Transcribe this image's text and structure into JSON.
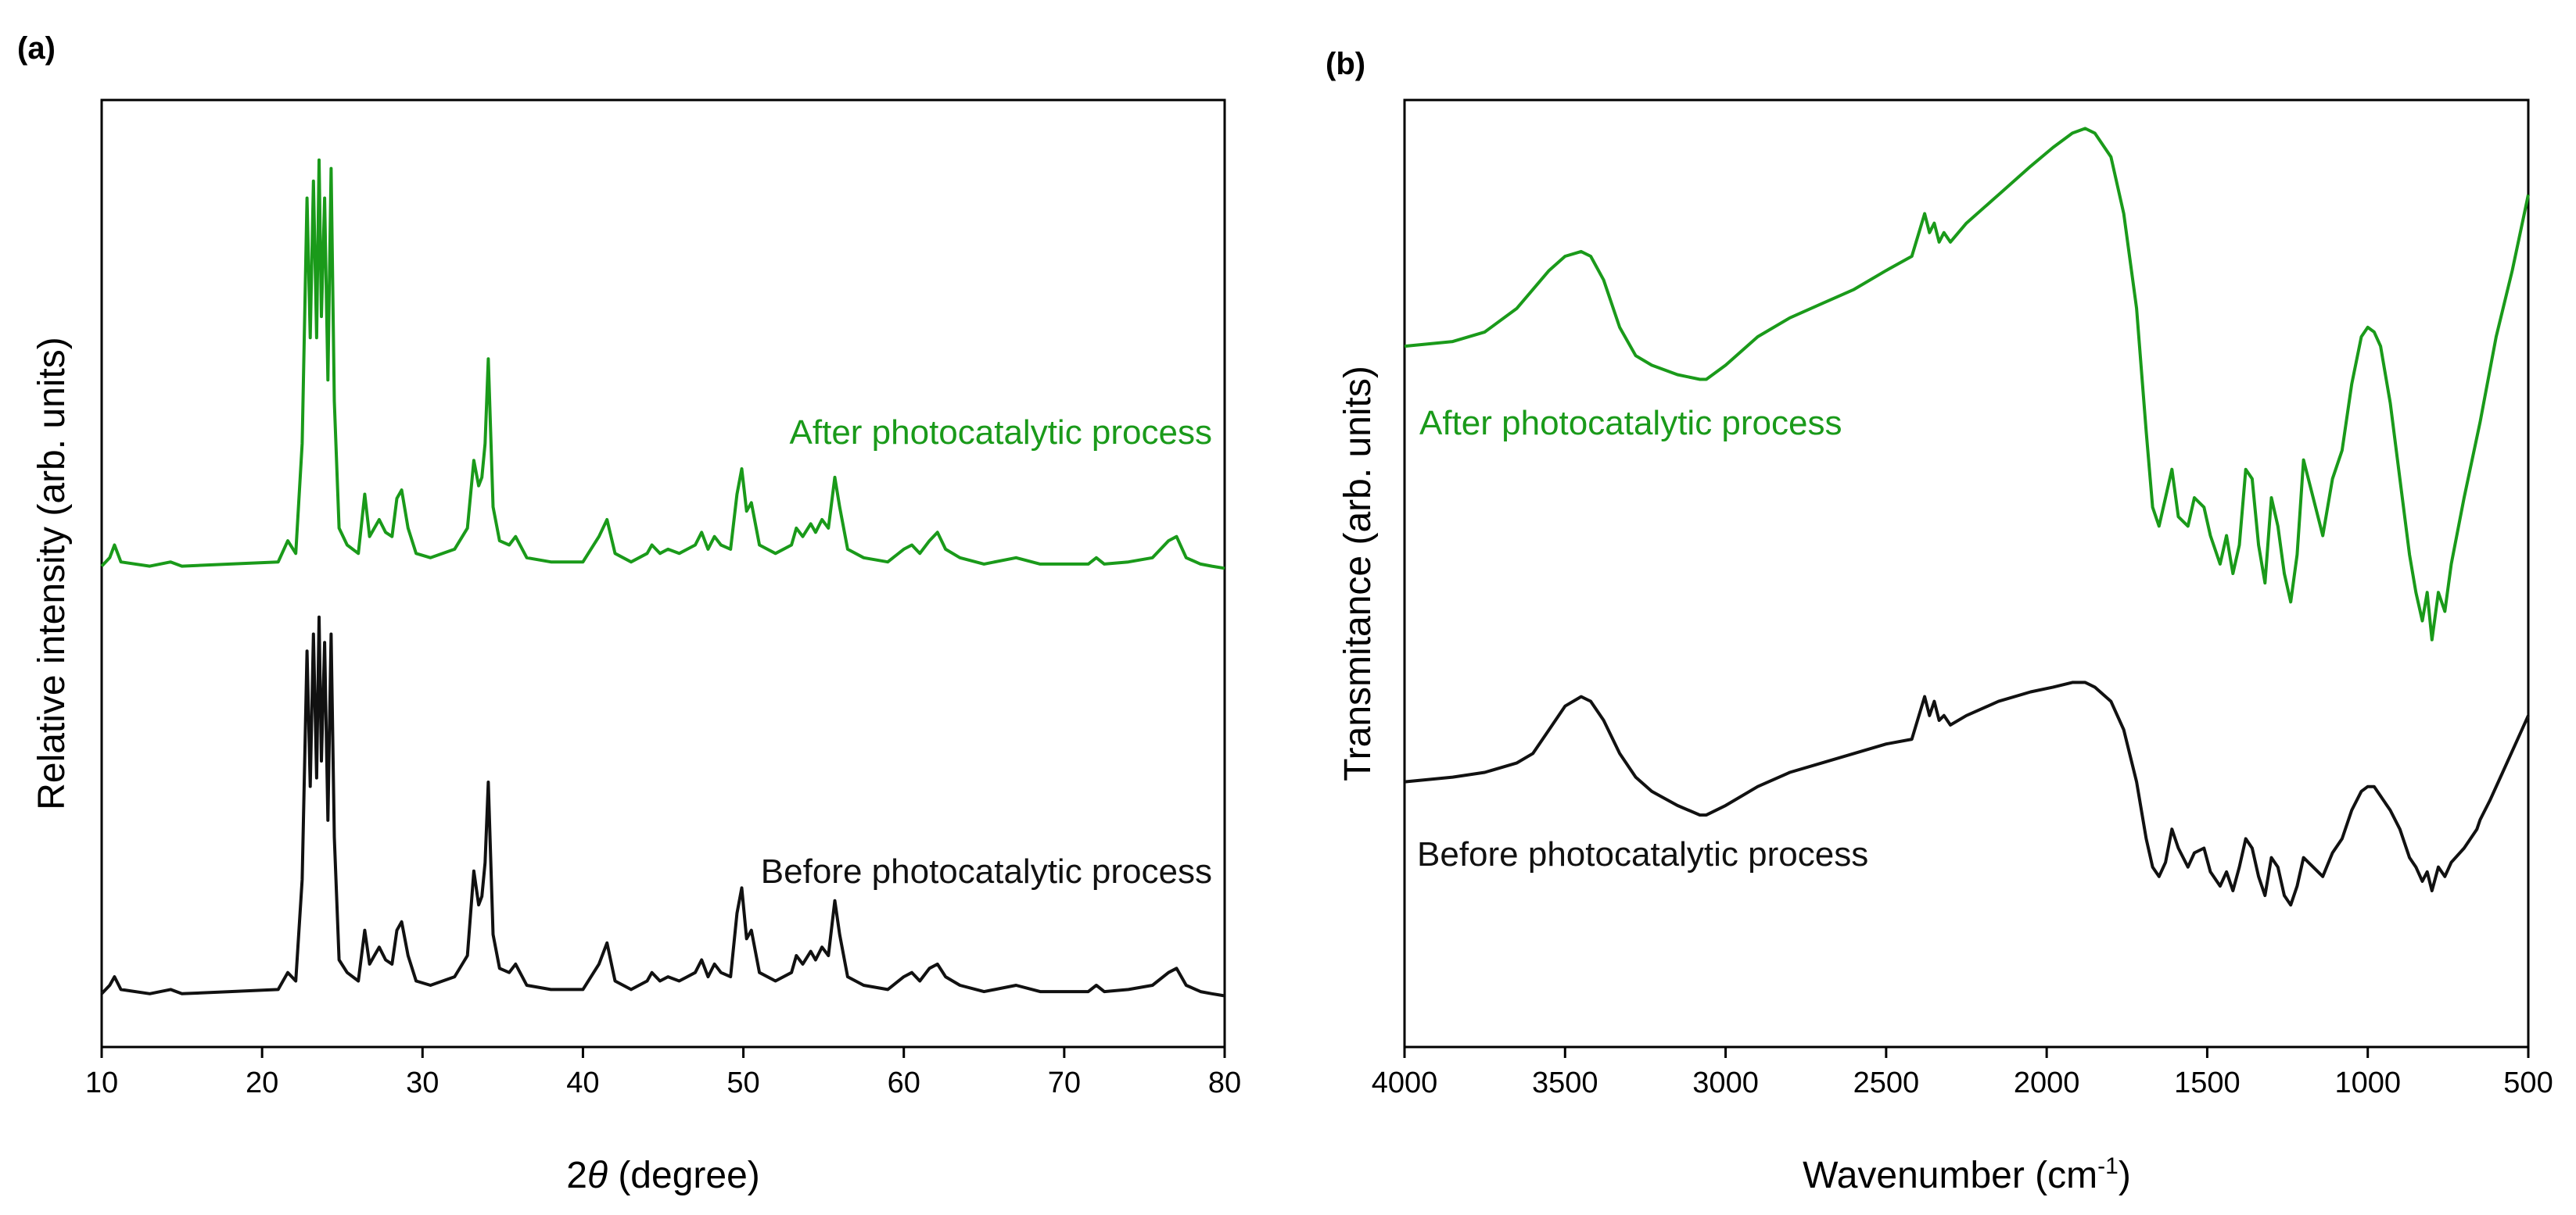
{
  "chart_data": [
    {
      "type": "line",
      "panel_label": "(a)",
      "xlabel_prefix": "2",
      "xlabel_symbol": "θ",
      "xlabel_suffix": " (degree)",
      "ylabel": "Relative intensity (arb. units)",
      "xlim": [
        10,
        80
      ],
      "ylim": [
        0,
        100
      ],
      "xticks": [
        10,
        20,
        30,
        40,
        50,
        60,
        70,
        80
      ],
      "grid": false,
      "y_tick_labels": false,
      "series": [
        {
          "name": "After photocatalytic process",
          "color": "#1a9a1a",
          "baseline": 50,
          "scale": 0.95,
          "x": [
            10,
            10.5,
            10.8,
            11.2,
            13,
            14.3,
            15,
            18,
            21,
            21.6,
            22.1,
            22.5,
            22.8,
            23.0,
            23.2,
            23.4,
            23.55,
            23.7,
            23.9,
            24.1,
            24.3,
            24.5,
            24.8,
            25.3,
            26.0,
            26.4,
            26.7,
            27.0,
            27.3,
            27.7,
            28.1,
            28.4,
            28.7,
            29.1,
            29.6,
            30.5,
            32.0,
            32.8,
            33.2,
            33.5,
            33.7,
            33.9,
            34.1,
            34.4,
            34.8,
            35.4,
            35.8,
            36.5,
            38,
            40,
            41.0,
            41.5,
            42.0,
            43,
            44.0,
            44.3,
            44.8,
            45.3,
            46.0,
            46.5,
            47.0,
            47.4,
            47.8,
            48.2,
            48.6,
            49.2,
            49.6,
            49.9,
            50.2,
            50.5,
            51.0,
            52.0,
            53.0,
            53.3,
            53.7,
            54.2,
            54.5,
            54.9,
            55.3,
            55.7,
            56.0,
            56.5,
            57.5,
            59,
            60.0,
            60.5,
            61.0,
            61.6,
            62.1,
            62.6,
            63.5,
            65,
            67.0,
            68.5,
            70,
            71.5,
            72.0,
            72.5,
            74,
            75.5,
            76.5,
            77.0,
            77.6,
            78.5,
            79.2,
            80
          ],
          "y": [
            1,
            3,
            6,
            2,
            1,
            2,
            1,
            1.5,
            2,
            7,
            4,
            30,
            88,
            55,
            92,
            55,
            97,
            60,
            88,
            45,
            95,
            40,
            10,
            6,
            4,
            18,
            8,
            10,
            12,
            9,
            8,
            17,
            19,
            10,
            4,
            3,
            5,
            10,
            26,
            20,
            22,
            30,
            50,
            15,
            7,
            6,
            8,
            3,
            2,
            2,
            8,
            12,
            4,
            2,
            4,
            6,
            4,
            5,
            4,
            5,
            6,
            9,
            5,
            8,
            6,
            5,
            18,
            24,
            14,
            16,
            6,
            4,
            6,
            10,
            8,
            11,
            9,
            12,
            10,
            22,
            15,
            5,
            3,
            2,
            5,
            6,
            4,
            7,
            9,
            5,
            3,
            1.5,
            3,
            1.5,
            1.5,
            1.5,
            3,
            1.5,
            2,
            3,
            7,
            8,
            3,
            1.5,
            1,
            0.5
          ]
        },
        {
          "name": "Before photocatalytic process",
          "color": "#111111",
          "baseline": 2,
          "scale": 0.95,
          "x": [
            10,
            10.5,
            10.8,
            11.2,
            13,
            14.3,
            15,
            18,
            21,
            21.6,
            22.1,
            22.5,
            22.8,
            23.0,
            23.2,
            23.4,
            23.55,
            23.7,
            23.9,
            24.1,
            24.3,
            24.5,
            24.8,
            25.3,
            26.0,
            26.4,
            26.7,
            27.0,
            27.3,
            27.7,
            28.1,
            28.4,
            28.7,
            29.1,
            29.6,
            30.5,
            32.0,
            32.8,
            33.2,
            33.5,
            33.7,
            33.9,
            34.1,
            34.4,
            34.8,
            35.4,
            35.8,
            36.5,
            38,
            40,
            41.0,
            41.5,
            42.0,
            43,
            44.0,
            44.3,
            44.8,
            45.3,
            46.0,
            46.5,
            47.0,
            47.4,
            47.8,
            48.2,
            48.6,
            49.2,
            49.6,
            49.9,
            50.2,
            50.5,
            51.0,
            52.0,
            53.0,
            53.3,
            53.7,
            54.2,
            54.5,
            54.9,
            55.3,
            55.7,
            56.0,
            56.5,
            57.5,
            59,
            60.0,
            60.5,
            61.0,
            61.6,
            62.1,
            62.6,
            63.5,
            65,
            67.0,
            68.5,
            70,
            71.5,
            72.0,
            72.5,
            74,
            75.5,
            76.5,
            77.0,
            77.6,
            78.5,
            79.2,
            80
          ],
          "y": [
            1,
            3,
            5,
            2,
            1,
            2,
            1,
            1.5,
            2,
            6,
            4,
            28,
            82,
            50,
            86,
            52,
            90,
            56,
            84,
            42,
            86,
            38,
            9,
            6,
            4,
            16,
            8,
            10,
            12,
            9,
            8,
            16,
            18,
            10,
            4,
            3,
            5,
            10,
            30,
            22,
            24,
            32,
            51,
            15,
            7,
            6,
            8,
            3,
            2,
            2,
            8,
            13,
            4,
            2,
            4,
            6,
            4,
            5,
            4,
            5,
            6,
            9,
            5,
            8,
            6,
            5,
            20,
            26,
            14,
            16,
            6,
            4,
            6,
            10,
            8,
            11,
            9,
            12,
            10,
            23,
            15,
            5,
            3,
            2,
            5,
            6,
            4,
            7,
            8,
            5,
            3,
            1.5,
            3,
            1.5,
            1.5,
            1.5,
            3,
            1.5,
            2,
            3,
            6,
            7,
            3,
            1.5,
            1,
            0.5
          ]
        }
      ]
    },
    {
      "type": "line",
      "panel_label": "(b)",
      "xlabel_main": "Wavenumber (cm",
      "xlabel_sup": "-1",
      "xlabel_end": ")",
      "ylabel": "Transmitance (arb. units)",
      "xlim": [
        4000,
        500
      ],
      "ylim": [
        0,
        100
      ],
      "xticks": [
        4000,
        3500,
        3000,
        2500,
        2000,
        1500,
        1000,
        500
      ],
      "grid": false,
      "y_tick_labels": false,
      "series": [
        {
          "name": "After photocatalytic process",
          "color": "#1a9a1a",
          "x": [
            4000,
            3850,
            3750,
            3650,
            3600,
            3550,
            3500,
            3450,
            3420,
            3380,
            3330,
            3280,
            3230,
            3150,
            3080,
            3060,
            3000,
            2900,
            2800,
            2700,
            2600,
            2500,
            2420,
            2380,
            2365,
            2350,
            2335,
            2320,
            2300,
            2250,
            2150,
            2050,
            1980,
            1920,
            1880,
            1850,
            1800,
            1760,
            1720,
            1690,
            1670,
            1650,
            1630,
            1610,
            1590,
            1560,
            1540,
            1510,
            1490,
            1460,
            1440,
            1420,
            1400,
            1380,
            1360,
            1340,
            1320,
            1300,
            1280,
            1260,
            1240,
            1220,
            1200,
            1170,
            1140,
            1110,
            1080,
            1050,
            1020,
            1000,
            980,
            960,
            930,
            900,
            870,
            850,
            830,
            815,
            800,
            780,
            760,
            740,
            700,
            650,
            600,
            550,
            500
          ],
          "y": [
            74,
            74.5,
            75.5,
            78,
            80,
            82,
            83.5,
            84,
            83.5,
            81,
            76,
            73,
            72,
            71,
            70.5,
            70.5,
            72,
            75,
            77,
            78.5,
            80,
            82,
            83.5,
            88,
            86,
            87,
            85,
            86,
            85,
            87,
            90,
            93,
            95,
            96.5,
            97,
            96.5,
            94,
            88,
            78,
            65,
            57,
            55,
            58,
            61,
            56,
            55,
            58,
            57,
            54,
            51,
            54,
            50,
            53,
            61,
            60,
            53,
            49,
            58,
            55,
            50,
            47,
            52,
            62,
            58,
            54,
            60,
            63,
            70,
            75,
            76,
            75.5,
            74,
            68,
            60,
            52,
            48,
            45,
            48,
            43,
            48,
            46,
            51,
            58,
            66,
            75,
            82,
            90
          ]
        },
        {
          "name": "Before photocatalytic process",
          "color": "#111111",
          "x": [
            4000,
            3850,
            3750,
            3650,
            3600,
            3550,
            3500,
            3450,
            3420,
            3380,
            3330,
            3280,
            3230,
            3150,
            3080,
            3060,
            3000,
            2900,
            2800,
            2700,
            2600,
            2500,
            2420,
            2380,
            2365,
            2350,
            2335,
            2320,
            2300,
            2250,
            2150,
            2050,
            1980,
            1920,
            1880,
            1850,
            1800,
            1760,
            1720,
            1690,
            1670,
            1650,
            1630,
            1610,
            1590,
            1560,
            1540,
            1510,
            1490,
            1460,
            1440,
            1420,
            1400,
            1380,
            1360,
            1340,
            1320,
            1300,
            1280,
            1260,
            1240,
            1220,
            1200,
            1170,
            1140,
            1110,
            1080,
            1050,
            1020,
            1000,
            980,
            960,
            930,
            900,
            870,
            850,
            830,
            815,
            800,
            780,
            760,
            740,
            700,
            680,
            660,
            650,
            620,
            580,
            540,
            500
          ],
          "y": [
            28,
            28.5,
            29,
            30,
            31,
            33.5,
            36,
            37,
            36.5,
            34.5,
            31,
            28.5,
            27,
            25.5,
            24.5,
            24.5,
            25.5,
            27.5,
            29,
            30,
            31,
            32,
            32.5,
            37,
            35,
            36.5,
            34.5,
            35,
            34,
            35,
            36.5,
            37.5,
            38,
            38.5,
            38.5,
            38,
            36.5,
            33.5,
            28,
            22,
            19,
            18,
            19.5,
            23,
            21,
            19,
            20.5,
            21,
            18.5,
            17,
            18.5,
            16.5,
            19,
            22,
            21,
            18,
            16,
            20,
            19,
            16,
            15,
            17,
            20,
            19,
            18,
            20.5,
            22,
            25,
            27,
            27.5,
            27.5,
            26.5,
            25,
            23,
            20,
            19,
            17.5,
            18.5,
            16.5,
            19,
            18,
            19.5,
            21,
            22,
            23,
            24,
            26,
            29,
            32,
            35
          ]
        }
      ]
    }
  ]
}
